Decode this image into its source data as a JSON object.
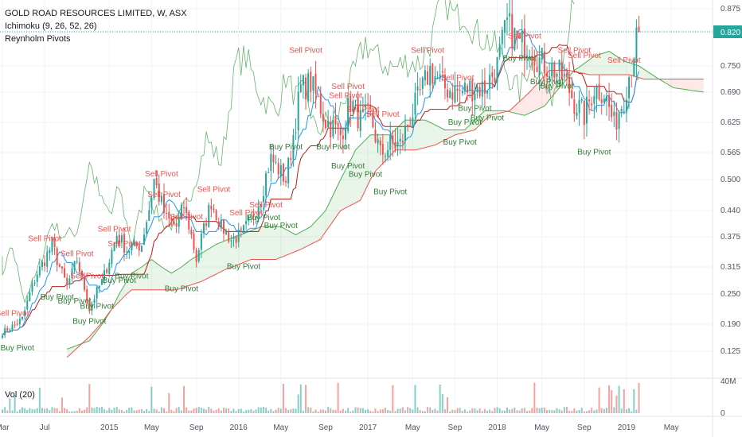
{
  "header": {
    "title": "GOLD ROAD RESOURCES LIMITED, W, ASX",
    "indicator_ichimoku": "Ichimoku (9, 26, 52, 26)",
    "indicator_pivots": "Reynholm Pivots",
    "volume_label": "Vol (20)"
  },
  "colors": {
    "up": "#26a69a",
    "down": "#ef5350",
    "tenkan": "#2196f3",
    "kijun": "#b71c1c",
    "lagging": "#43a047",
    "span_a": "#4caf50",
    "span_b": "#ef5350",
    "cloud_bull": "rgba(76,175,80,0.13)",
    "cloud_bear": "rgba(239,83,80,0.13)",
    "price_label_bg": "#26a69a",
    "sell_pivot": "#ef5350",
    "buy_pivot": "#2e7d32"
  },
  "chart_data": {
    "type": "candlestick",
    "title": "GOLD ROAD RESOURCES LIMITED, W, ASX",
    "y_ticks": [
      "0.875",
      "0.820",
      "0.750",
      "0.690",
      "0.625",
      "0.565",
      "0.500",
      "0.440",
      "0.375",
      "0.315",
      "0.250",
      "0.190",
      "0.125"
    ],
    "y_tick_values": [
      0.875,
      0.82,
      0.75,
      0.69,
      0.625,
      0.565,
      0.5,
      0.44,
      0.375,
      0.315,
      0.25,
      0.19,
      0.125
    ],
    "ylim": [
      0.09,
      0.89
    ],
    "last_price": "0.820",
    "last_price_value": 0.82,
    "x_ticks": [
      {
        "label": "Mar",
        "t": 0
      },
      {
        "label": "Jul",
        "t": 17
      },
      {
        "label": "2015",
        "t": 43
      },
      {
        "label": "May",
        "t": 60
      },
      {
        "label": "Sep",
        "t": 78
      },
      {
        "label": "2016",
        "t": 95
      },
      {
        "label": "May",
        "t": 112
      },
      {
        "label": "Sep",
        "t": 130
      },
      {
        "label": "2017",
        "t": 147
      },
      {
        "label": "May",
        "t": 165
      },
      {
        "label": "Sep",
        "t": 182
      },
      {
        "label": "2018",
        "t": 199
      },
      {
        "label": "May",
        "t": 217
      },
      {
        "label": "Sep",
        "t": 234
      },
      {
        "label": "2019",
        "t": 251
      },
      {
        "label": "May",
        "t": 269
      }
    ],
    "volume_ticks": [
      "40M",
      "0"
    ],
    "volume_tick_values": [
      40,
      0
    ],
    "anchors": [
      [
        0,
        0.17
      ],
      [
        8,
        0.2
      ],
      [
        14,
        0.3
      ],
      [
        20,
        0.36
      ],
      [
        26,
        0.27
      ],
      [
        30,
        0.33
      ],
      [
        35,
        0.22
      ],
      [
        40,
        0.28
      ],
      [
        46,
        0.38
      ],
      [
        50,
        0.35
      ],
      [
        56,
        0.36
      ],
      [
        61,
        0.5
      ],
      [
        66,
        0.42
      ],
      [
        70,
        0.4
      ],
      [
        73,
        0.45
      ],
      [
        78,
        0.33
      ],
      [
        84,
        0.46
      ],
      [
        88,
        0.4
      ],
      [
        92,
        0.37
      ],
      [
        96,
        0.38
      ],
      [
        100,
        0.42
      ],
      [
        104,
        0.47
      ],
      [
        108,
        0.55
      ],
      [
        114,
        0.5
      ],
      [
        120,
        0.7
      ],
      [
        124,
        0.71
      ],
      [
        130,
        0.63
      ],
      [
        136,
        0.6
      ],
      [
        140,
        0.67
      ],
      [
        144,
        0.63
      ],
      [
        148,
        0.64
      ],
      [
        152,
        0.56
      ],
      [
        156,
        0.58
      ],
      [
        160,
        0.58
      ],
      [
        166,
        0.66
      ],
      [
        172,
        0.74
      ],
      [
        178,
        0.7
      ],
      [
        184,
        0.69
      ],
      [
        188,
        0.7
      ],
      [
        194,
        0.7
      ],
      [
        199,
        0.75
      ],
      [
        203,
        0.84
      ],
      [
        208,
        0.79
      ],
      [
        212,
        0.8
      ],
      [
        216,
        0.76
      ],
      [
        222,
        0.74
      ],
      [
        226,
        0.72
      ],
      [
        230,
        0.67
      ],
      [
        234,
        0.64
      ],
      [
        238,
        0.7
      ],
      [
        242,
        0.69
      ],
      [
        246,
        0.62
      ],
      [
        250,
        0.68
      ],
      [
        254,
        0.78
      ],
      [
        256,
        0.82
      ]
    ],
    "span_a": [
      [
        26,
        0.13
      ],
      [
        35,
        0.15
      ],
      [
        44,
        0.22
      ],
      [
        52,
        0.3
      ],
      [
        60,
        0.33
      ],
      [
        68,
        0.3
      ],
      [
        76,
        0.33
      ],
      [
        86,
        0.36
      ],
      [
        96,
        0.38
      ],
      [
        104,
        0.4
      ],
      [
        112,
        0.4
      ],
      [
        118,
        0.38
      ],
      [
        124,
        0.4
      ],
      [
        130,
        0.44
      ],
      [
        136,
        0.5
      ],
      [
        142,
        0.57
      ],
      [
        148,
        0.6
      ],
      [
        156,
        0.6
      ],
      [
        162,
        0.63
      ],
      [
        170,
        0.63
      ],
      [
        178,
        0.61
      ],
      [
        186,
        0.61
      ],
      [
        194,
        0.65
      ],
      [
        202,
        0.65
      ],
      [
        210,
        0.64
      ],
      [
        218,
        0.66
      ],
      [
        224,
        0.7
      ],
      [
        230,
        0.74
      ],
      [
        238,
        0.77
      ],
      [
        244,
        0.78
      ],
      [
        250,
        0.76
      ],
      [
        256,
        0.75
      ],
      [
        264,
        0.72
      ],
      [
        270,
        0.7
      ],
      [
        282,
        0.69
      ]
    ],
    "span_b": [
      [
        26,
        0.11
      ],
      [
        35,
        0.16
      ],
      [
        44,
        0.22
      ],
      [
        52,
        0.26
      ],
      [
        60,
        0.26
      ],
      [
        70,
        0.26
      ],
      [
        80,
        0.28
      ],
      [
        90,
        0.31
      ],
      [
        100,
        0.33
      ],
      [
        110,
        0.33
      ],
      [
        120,
        0.35
      ],
      [
        128,
        0.37
      ],
      [
        136,
        0.44
      ],
      [
        144,
        0.46
      ],
      [
        150,
        0.52
      ],
      [
        158,
        0.57
      ],
      [
        166,
        0.57
      ],
      [
        174,
        0.58
      ],
      [
        182,
        0.6
      ],
      [
        190,
        0.61
      ],
      [
        196,
        0.64
      ],
      [
        204,
        0.65
      ],
      [
        212,
        0.69
      ],
      [
        220,
        0.74
      ],
      [
        228,
        0.74
      ],
      [
        236,
        0.73
      ],
      [
        244,
        0.73
      ],
      [
        252,
        0.73
      ],
      [
        258,
        0.72
      ],
      [
        266,
        0.72
      ],
      [
        282,
        0.72
      ]
    ],
    "pivots": [
      {
        "label": "Sell Pivot",
        "t": 4,
        "y": 0.2,
        "side": "sell"
      },
      {
        "label": "Buy Pivot",
        "t": 6,
        "y": 0.15,
        "side": "buy"
      },
      {
        "label": "Sell Pivot",
        "t": 17,
        "y": 0.36,
        "side": "sell"
      },
      {
        "label": "Buy Pivot",
        "t": 22,
        "y": 0.26,
        "side": "buy"
      },
      {
        "label": "Sell Pivot",
        "t": 30,
        "y": 0.33,
        "side": "sell"
      },
      {
        "label": "Sell Pivot",
        "t": 34,
        "y": 0.28,
        "side": "sell"
      },
      {
        "label": "Buy Pivot",
        "t": 29,
        "y": 0.25,
        "side": "buy"
      },
      {
        "label": "Buy Pivot",
        "t": 38,
        "y": 0.24,
        "side": "buy"
      },
      {
        "label": "Buy Pivot",
        "t": 35,
        "y": 0.21,
        "side": "buy"
      },
      {
        "label": "Sell Pivot",
        "t": 45,
        "y": 0.38,
        "side": "sell"
      },
      {
        "label": "Sell Pivot",
        "t": 49,
        "y": 0.35,
        "side": "sell"
      },
      {
        "label": "Buy Pivot",
        "t": 47,
        "y": 0.3,
        "side": "buy"
      },
      {
        "label": "Buy Pivot",
        "t": 52,
        "y": 0.31,
        "side": "buy"
      },
      {
        "label": "Sell Pivot",
        "t": 64,
        "y": 0.5,
        "side": "sell"
      },
      {
        "label": "Sell Pivot",
        "t": 65,
        "y": 0.46,
        "side": "sell"
      },
      {
        "label": "Buy Pivot",
        "t": 72,
        "y": 0.28,
        "side": "buy"
      },
      {
        "label": "Sell Pivot",
        "t": 85,
        "y": 0.47,
        "side": "sell"
      },
      {
        "label": "Sell Pivot",
        "t": 74,
        "y": 0.41,
        "side": "sell"
      },
      {
        "label": "Buy Pivot",
        "t": 97,
        "y": 0.33,
        "side": "buy"
      },
      {
        "label": "Sell Pivot",
        "t": 98,
        "y": 0.42,
        "side": "sell"
      },
      {
        "label": "Sell Pivot",
        "t": 106,
        "y": 0.44,
        "side": "sell"
      },
      {
        "label": "Buy Pivot",
        "t": 105,
        "y": 0.44,
        "side": "buy"
      },
      {
        "label": "Buy Pivot",
        "t": 112,
        "y": 0.42,
        "side": "buy"
      },
      {
        "label": "Buy Pivot",
        "t": 114,
        "y": 0.59,
        "side": "buy"
      },
      {
        "label": "Sell Pivot",
        "t": 122,
        "y": 0.77,
        "side": "sell"
      },
      {
        "label": "Buy Pivot",
        "t": 133,
        "y": 0.59,
        "side": "buy"
      },
      {
        "label": "Sell Pivot",
        "t": 139,
        "y": 0.69,
        "side": "sell"
      },
      {
        "label": "Sell Pivot",
        "t": 138,
        "y": 0.67,
        "side": "sell"
      },
      {
        "label": "Buy Pivot",
        "t": 139,
        "y": 0.55,
        "side": "buy"
      },
      {
        "label": "Sell Pivot",
        "t": 145,
        "y": 0.64,
        "side": "sell"
      },
      {
        "label": "Sell Pivot",
        "t": 153,
        "y": 0.63,
        "side": "sell"
      },
      {
        "label": "Buy Pivot",
        "t": 146,
        "y": 0.53,
        "side": "buy"
      },
      {
        "label": "Buy Pivot",
        "t": 156,
        "y": 0.49,
        "side": "buy"
      },
      {
        "label": "Sell Pivot",
        "t": 171,
        "y": 0.77,
        "side": "sell"
      },
      {
        "label": "Sell Pivot",
        "t": 183,
        "y": 0.71,
        "side": "sell"
      },
      {
        "label": "Buy Pivot",
        "t": 184,
        "y": 0.6,
        "side": "buy"
      },
      {
        "label": "Buy Pivot",
        "t": 186,
        "y": 0.64,
        "side": "buy"
      },
      {
        "label": "Buy Pivot",
        "t": 190,
        "y": 0.67,
        "side": "buy"
      },
      {
        "label": "Buy Pivot",
        "t": 195,
        "y": 0.65,
        "side": "buy"
      },
      {
        "label": "Sell Pivot",
        "t": 210,
        "y": 0.8,
        "side": "sell"
      },
      {
        "label": "Buy Pivot",
        "t": 208,
        "y": 0.78,
        "side": "buy"
      },
      {
        "label": "Buy Pivot",
        "t": 219,
        "y": 0.73,
        "side": "buy"
      },
      {
        "label": "Buy Pivot",
        "t": 223,
        "y": 0.72,
        "side": "buy"
      },
      {
        "label": "Sell Pivot",
        "t": 230,
        "y": 0.77,
        "side": "sell"
      },
      {
        "label": "Sell Pivot",
        "t": 234,
        "y": 0.76,
        "side": "sell"
      },
      {
        "label": "Sell Pivot",
        "t": 250,
        "y": 0.75,
        "side": "sell"
      },
      {
        "label": "Buy Pivot",
        "t": 238,
        "y": 0.58,
        "side": "buy"
      }
    ]
  }
}
